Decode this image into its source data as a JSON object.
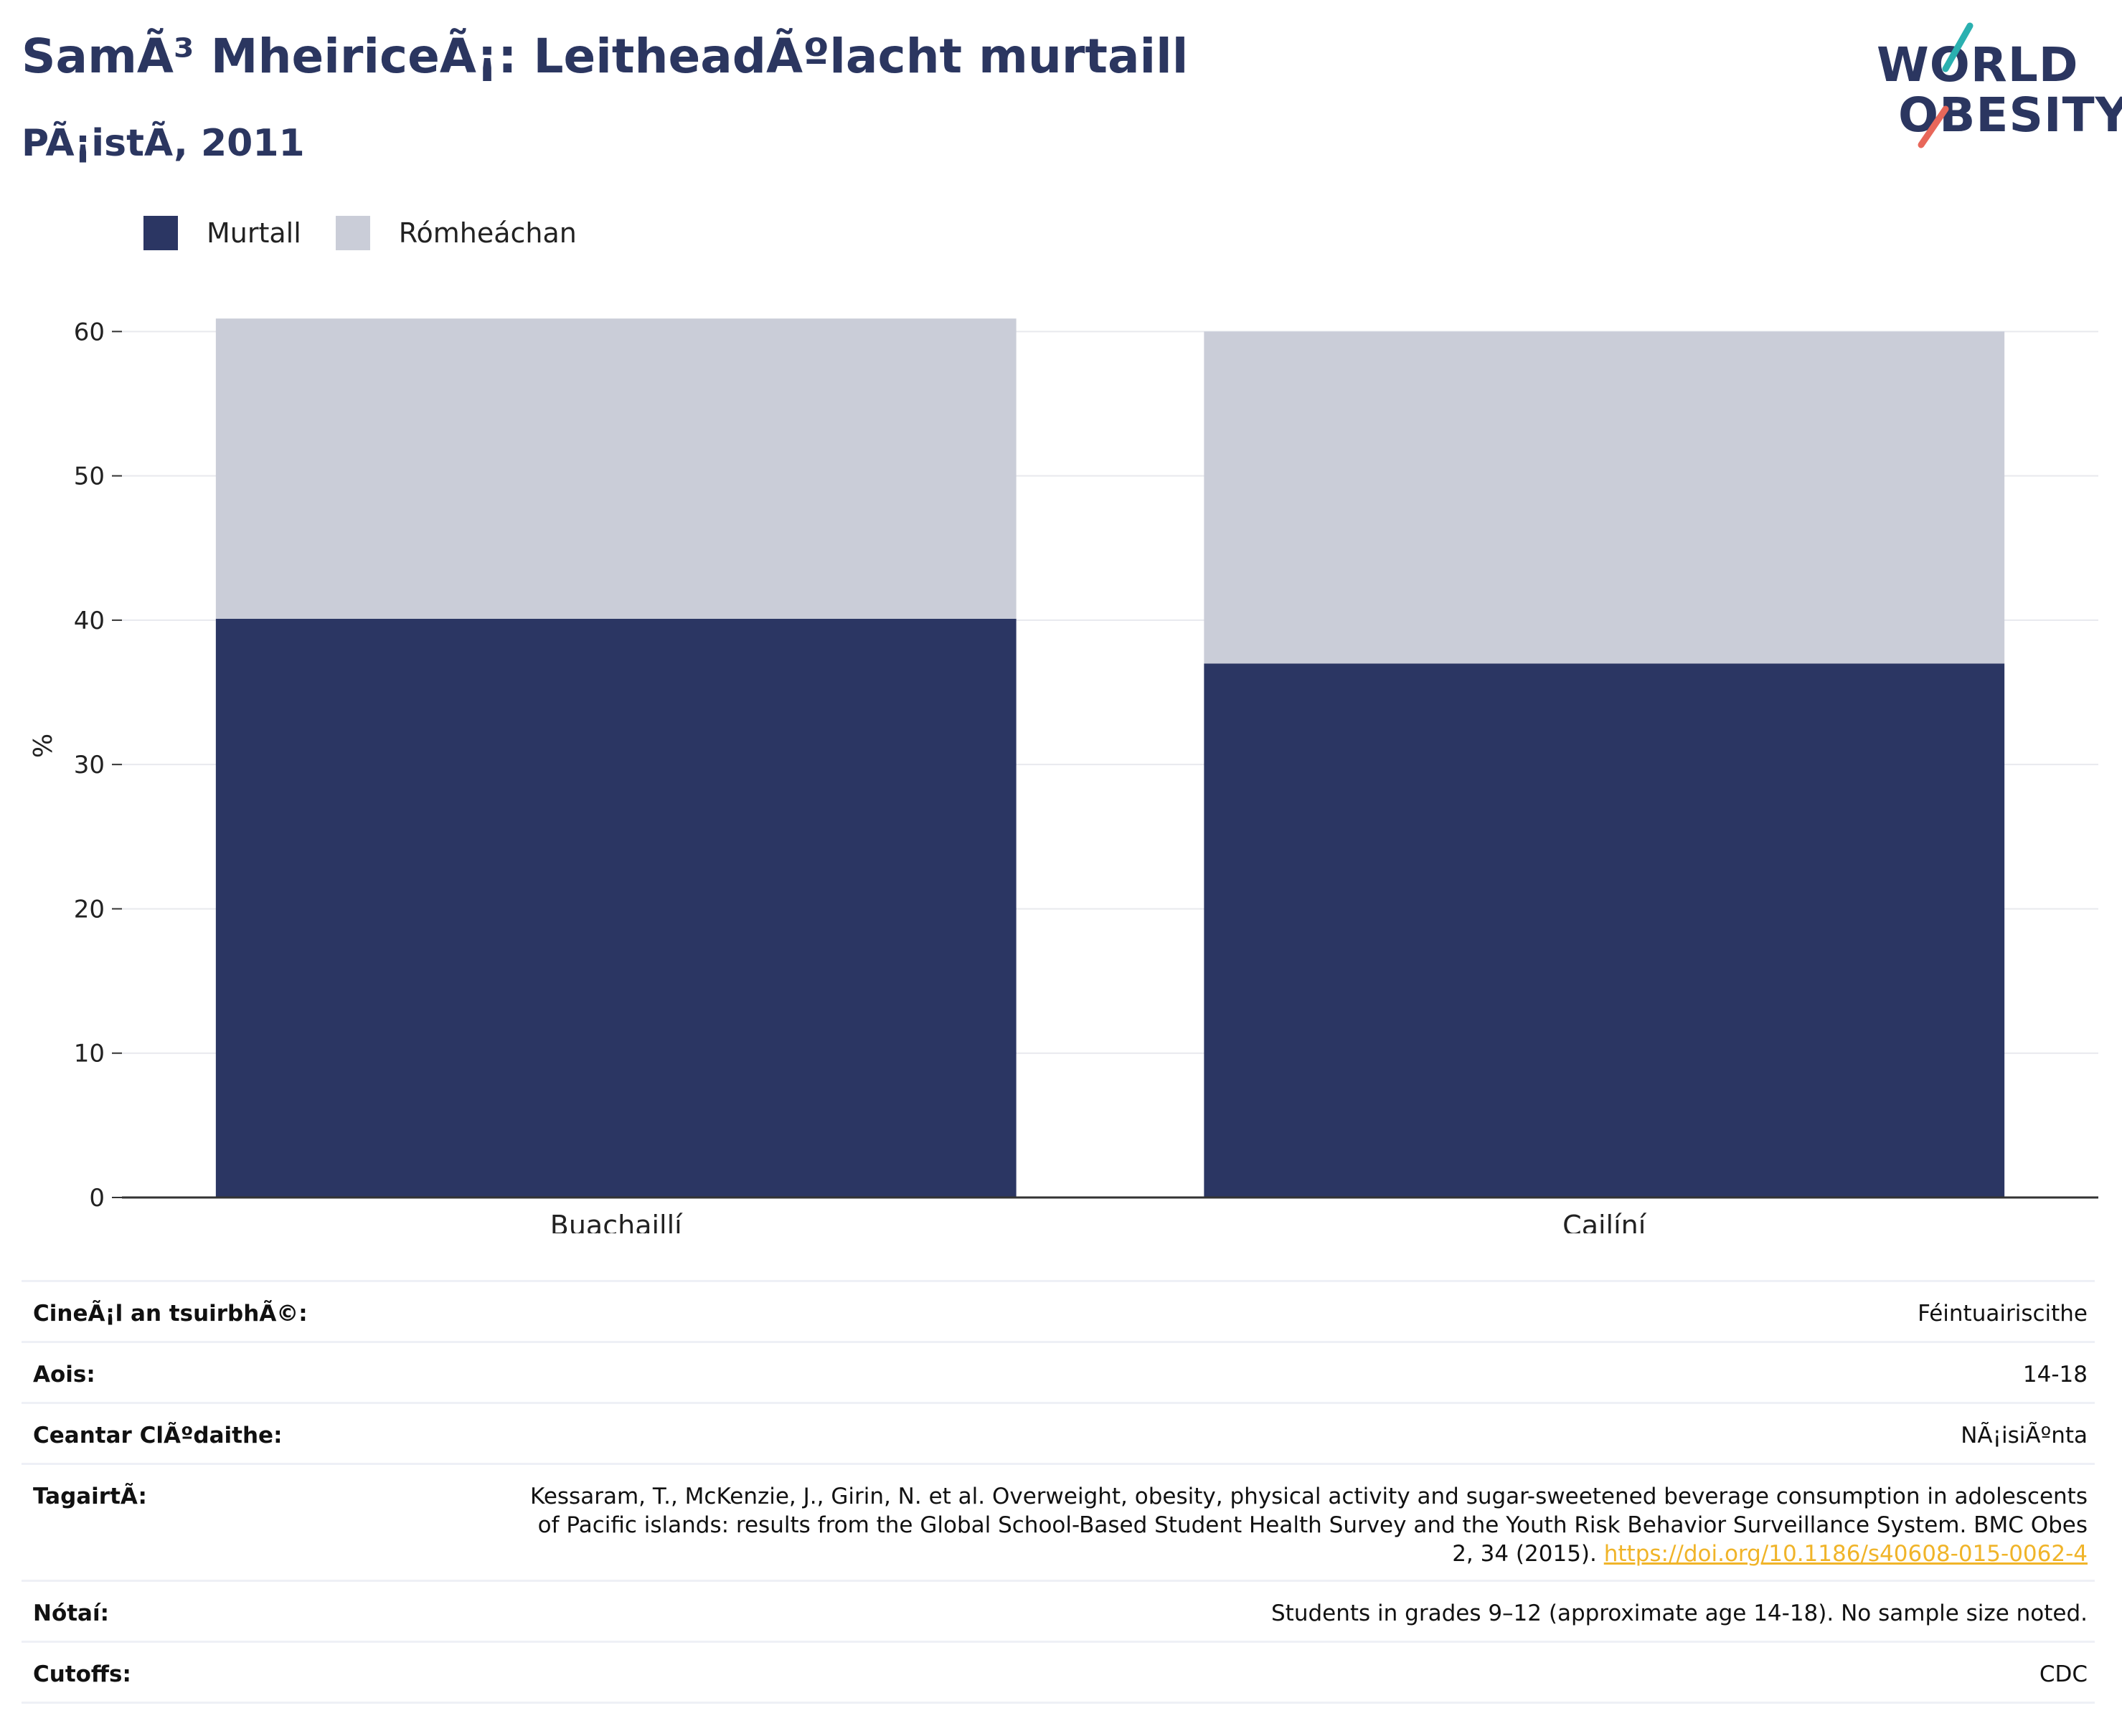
{
  "header": {
    "title": "SamÃ³ MheiriceÃ¡: LeitheadÃºlacht murtaill",
    "subtitle": "PÃ¡istÃ, 2011"
  },
  "logo": {
    "line1": "WORLD",
    "line2": "OBESITY",
    "accent_teal": "#2ab0b0",
    "accent_red": "#e8675a"
  },
  "colors": {
    "obese": "#2b3663",
    "overweight": "#cacdd8",
    "axis": "#333333",
    "grid": "#e8e9ee",
    "link": "#f0b429"
  },
  "chart_data": {
    "type": "bar",
    "stacked": true,
    "categories": [
      "Buachaillí",
      "Cailíní"
    ],
    "series": [
      {
        "name": "Murtall",
        "values": [
          40.1,
          37.0
        ],
        "color": "#2b3663"
      },
      {
        "name": "Rómheáchan",
        "values": [
          20.8,
          23.0
        ],
        "color": "#cacdd8"
      }
    ],
    "ylabel": "%",
    "ylim": [
      0,
      60
    ],
    "yticks": [
      0,
      10,
      20,
      30,
      40,
      50,
      60
    ],
    "grid": true,
    "legend_position": "top-left"
  },
  "info": {
    "survey_type": {
      "label": "CineÃ¡l an tsuirbhÃ©:",
      "value": "Féintuairiscithe"
    },
    "age": {
      "label": "Aois:",
      "value": "14-18"
    },
    "area": {
      "label": "Ceantar ClÃºdaithe:",
      "value": "NÃ¡isiÃºnta"
    },
    "reference": {
      "label": "TagairtÃ:",
      "text": "Kessaram, T., McKenzie, J., Girin, N. et al. Overweight, obesity, physical activity and sugar-sweetened beverage consumption in adolescents of Pacific islands: results from the Global School-Based Student Health Survey and the Youth Risk Behavior Surveillance System. BMC Obes 2, 34 (2015).",
      "link": "https://doi.org/10.1186/s40608-015-0062-4"
    },
    "notes": {
      "label": "Nótaí:",
      "value": "Students in grades 9–12 (approximate age 14-18). No sample size noted."
    },
    "cutoffs": {
      "label": "Cutoffs:",
      "value": "CDC"
    }
  }
}
